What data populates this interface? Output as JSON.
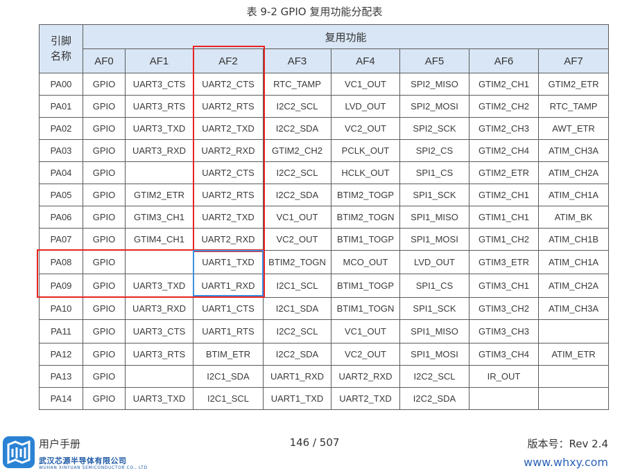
{
  "title": "表 9-2    GPIO 复用功能分配表",
  "header": {
    "pin_label": "引脚\n名称",
    "group_label": "复用功能",
    "af": [
      "AF0",
      "AF1",
      "AF2",
      "AF3",
      "AF4",
      "AF5",
      "AF6",
      "AF7"
    ]
  },
  "rows": [
    [
      "PA00",
      "GPIO",
      "UART3_CTS",
      "UART2_CTS",
      "RTC_TAMP",
      "VC1_OUT",
      "SPI2_MISO",
      "GTIM2_CH1",
      "GTIM2_ETR"
    ],
    [
      "PA01",
      "GPIO",
      "UART3_RTS",
      "UART2_RTS",
      "I2C2_SCL",
      "LVD_OUT",
      "SPI2_MOSI",
      "GTIM2_CH2",
      "RTC_TAMP"
    ],
    [
      "PA02",
      "GPIO",
      "UART3_TXD",
      "UART2_TXD",
      "I2C2_SDA",
      "VC2_OUT",
      "SPI2_SCK",
      "GTIM2_CH3",
      "AWT_ETR"
    ],
    [
      "PA03",
      "GPIO",
      "UART3_RXD",
      "UART2_RXD",
      "GTIM2_CH2",
      "PCLK_OUT",
      "SPI2_CS",
      "GTIM2_CH4",
      "ATIM_CH3A"
    ],
    [
      "PA04",
      "GPIO",
      "",
      "UART2_CTS",
      "I2C2_SCL",
      "HCLK_OUT",
      "SPI1_CS",
      "GTIM2_ETR",
      "ATIM_CH2A"
    ],
    [
      "PA05",
      "GPIO",
      "GTIM2_ETR",
      "UART2_RTS",
      "I2C2_SDA",
      "BTIM2_TOGP",
      "SPI1_SCK",
      "GTIM2_CH1",
      "ATIM_CH1A"
    ],
    [
      "PA06",
      "GPIO",
      "GTIM3_CH1",
      "UART2_TXD",
      "VC1_OUT",
      "BTIM2_TOGN",
      "SPI1_MISO",
      "GTIM1_CH1",
      "ATIM_BK"
    ],
    [
      "PA07",
      "GPIO",
      "GTIM4_CH1",
      "UART2_RXD",
      "VC2_OUT",
      "BTIM1_TOGP",
      "SPI1_MOSI",
      "GTIM1_CH2",
      "ATIM_CH1B"
    ],
    [
      "PA08",
      "GPIO",
      "",
      "UART1_TXD",
      "BTIM2_TOGN",
      "MCO_OUT",
      "LVD_OUT",
      "GTIM3_ETR",
      "ATIM_CH1A"
    ],
    [
      "PA09",
      "GPIO",
      "UART3_TXD",
      "UART1_RXD",
      "I2C1_SCL",
      "BTIM1_TOGP",
      "SPI1_CS",
      "GTIM3_CH1",
      "ATIM_CH2A"
    ],
    [
      "PA10",
      "GPIO",
      "UART3_RXD",
      "UART1_CTS",
      "I2C1_SDA",
      "BTIM1_TOGN",
      "SPI1_SCK",
      "GTIM3_CH2",
      "ATIM_CH3A"
    ],
    [
      "PA11",
      "GPIO",
      "UART3_CTS",
      "UART1_RTS",
      "I2C2_SCL",
      "VC1_OUT",
      "SPI1_MISO",
      "GTIM3_CH3",
      ""
    ],
    [
      "PA12",
      "GPIO",
      "UART3_RTS",
      "BTIM_ETR",
      "I2C2_SDA",
      "VC2_OUT",
      "SPI1_MOSI",
      "GTIM3_CH4",
      "ATIM_ETR"
    ],
    [
      "PA13",
      "GPIO",
      "",
      "I2C1_SDA",
      "UART1_RXD",
      "UART2_RXD",
      "I2C2_SCL",
      "IR_OUT",
      ""
    ],
    [
      "PA14",
      "GPIO",
      "UART3_TXD",
      "I2C1_SCL",
      "UART1_TXD",
      "UART2_TXD",
      "I2C2_SDA",
      "",
      ""
    ]
  ],
  "footer": {
    "manual": "用户手册",
    "page": "146 / 507",
    "revision": "版本号：Rev 2.4",
    "company": "武汉芯源半导体有限公司",
    "company_en": "WUHAN XINYUAN SEMICONDUCTOR CO., LTD",
    "website": "www.whxy.com",
    "logo_icon": "xinyuan-logo-icon"
  },
  "colors": {
    "header_bg": "#d9e6f5",
    "highlight_red": "#e8231f",
    "highlight_blue": "#3d8fe0",
    "brand_blue": "#1f5aa6"
  }
}
